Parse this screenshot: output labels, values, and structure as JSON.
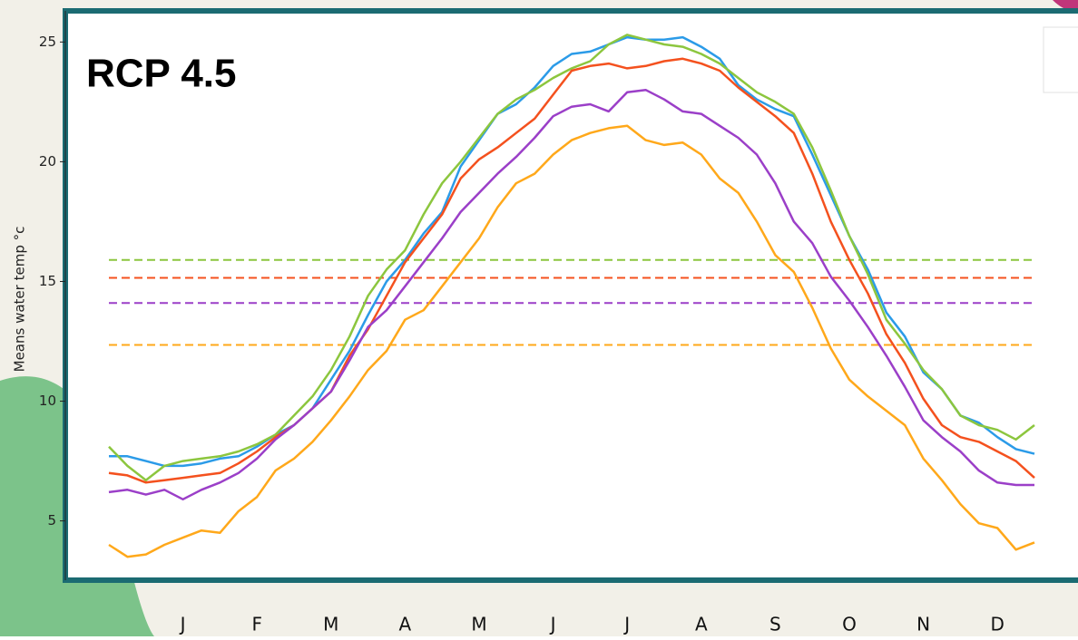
{
  "chart_data": {
    "type": "line",
    "title": "RCP 4.5",
    "y_label": "Means water temp °c",
    "categories": [
      null,
      null,
      null,
      null,
      "J",
      null,
      null,
      null,
      "F",
      null,
      null,
      null,
      "M",
      null,
      null,
      null,
      "A",
      null,
      null,
      null,
      "M",
      null,
      null,
      null,
      "J",
      null,
      null,
      null,
      "J",
      null,
      null,
      null,
      "A",
      null,
      null,
      null,
      "S",
      null,
      null,
      null,
      "O",
      null,
      null,
      null,
      "N",
      null,
      null,
      null,
      "D",
      null,
      null
    ],
    "ylim": [
      2.6,
      26.3
    ],
    "yticks": [
      5,
      10,
      15,
      20,
      25
    ],
    "series": [
      {
        "color": "#2b9be8",
        "values": [
          7.7,
          7.7,
          7.5,
          7.3,
          7.3,
          7.4,
          7.6,
          7.7,
          8.1,
          8.6,
          9.0,
          9.7,
          10.9,
          12.1,
          13.6,
          15.0,
          15.9,
          17.0,
          17.9,
          19.8,
          20.9,
          22.0,
          22.4,
          23.1,
          24.0,
          24.5,
          24.6,
          24.9,
          25.2,
          25.1,
          25.1,
          25.2,
          24.8,
          24.3,
          23.2,
          22.6,
          22.2,
          21.9,
          20.3,
          18.6,
          16.9,
          15.5,
          13.7,
          12.7,
          11.2,
          10.5,
          9.4,
          9.1,
          8.5,
          8.0,
          7.8
        ]
      },
      {
        "color": "#8cc63e",
        "values": [
          8.1,
          7.3,
          6.7,
          7.3,
          7.5,
          7.6,
          7.7,
          7.9,
          8.2,
          8.6,
          9.4,
          10.2,
          11.3,
          12.7,
          14.4,
          15.5,
          16.3,
          17.8,
          19.1,
          20.0,
          21.0,
          22.0,
          22.6,
          23.0,
          23.5,
          23.9,
          24.2,
          24.9,
          25.3,
          25.1,
          24.9,
          24.8,
          24.5,
          24.1,
          23.5,
          22.9,
          22.5,
          22.0,
          20.6,
          18.8,
          16.9,
          15.3,
          13.4,
          12.4,
          11.3,
          10.5,
          9.4,
          9.0,
          8.8,
          8.4,
          9.0
        ]
      },
      {
        "color": "#f4511e",
        "values": [
          7.0,
          6.9,
          6.6,
          6.7,
          6.8,
          6.9,
          7.0,
          7.4,
          7.9,
          8.5,
          9.0,
          9.7,
          10.4,
          11.9,
          13.0,
          14.4,
          15.8,
          16.8,
          17.8,
          19.3,
          20.1,
          20.6,
          21.2,
          21.8,
          22.8,
          23.8,
          24.0,
          24.1,
          23.9,
          24.0,
          24.2,
          24.3,
          24.1,
          23.8,
          23.1,
          22.5,
          21.9,
          21.2,
          19.5,
          17.5,
          15.9,
          14.5,
          12.8,
          11.6,
          10.1,
          9.0,
          8.5,
          8.3,
          7.9,
          7.5,
          6.8
        ]
      },
      {
        "color": "#9b3fc8",
        "values": [
          6.2,
          6.3,
          6.1,
          6.3,
          5.9,
          6.3,
          6.6,
          7.0,
          7.6,
          8.4,
          9.0,
          9.7,
          10.4,
          11.7,
          13.1,
          13.8,
          14.8,
          15.8,
          16.8,
          17.9,
          18.7,
          19.5,
          20.2,
          21.0,
          21.9,
          22.3,
          22.4,
          22.1,
          22.9,
          23.0,
          22.6,
          22.1,
          22.0,
          21.5,
          21.0,
          20.3,
          19.1,
          17.5,
          16.6,
          15.2,
          14.2,
          13.1,
          11.9,
          10.6,
          9.2,
          8.5,
          7.9,
          7.1,
          6.6,
          6.5,
          6.5
        ]
      },
      {
        "color": "#ffa81a",
        "values": [
          4.0,
          3.5,
          3.6,
          4.0,
          4.3,
          4.6,
          4.5,
          5.4,
          6.0,
          7.1,
          7.6,
          8.3,
          9.2,
          10.2,
          11.3,
          12.1,
          13.4,
          13.8,
          14.8,
          15.8,
          16.8,
          18.1,
          19.1,
          19.5,
          20.3,
          20.9,
          21.2,
          21.4,
          21.5,
          20.9,
          20.7,
          20.8,
          20.3,
          19.3,
          18.7,
          17.5,
          16.1,
          15.4,
          13.9,
          12.2,
          10.9,
          10.2,
          9.6,
          9.0,
          7.6,
          6.7,
          5.7,
          4.9,
          4.7,
          3.8,
          4.1
        ]
      }
    ],
    "reference_lines": [
      {
        "value": 15.9,
        "color": "#8cc63e"
      },
      {
        "value": 15.15,
        "color": "#f4511e"
      },
      {
        "value": 14.1,
        "color": "#9b3fc8"
      },
      {
        "value": 12.35,
        "color": "#ffa81a"
      }
    ]
  }
}
